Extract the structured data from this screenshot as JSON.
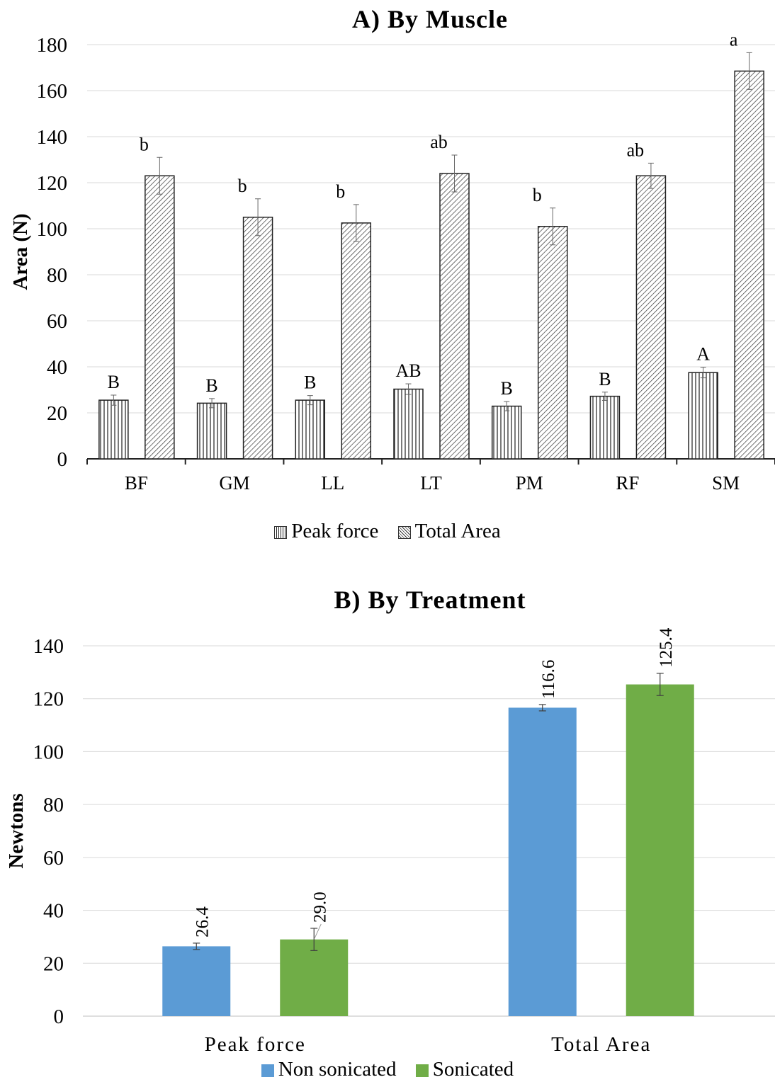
{
  "chart_data": [
    {
      "type": "bar",
      "title": "A) By Muscle",
      "ylabel": "Area (N)",
      "ylim": [
        0,
        180
      ],
      "yticks": [
        0,
        20,
        40,
        60,
        80,
        100,
        120,
        140,
        160,
        180
      ],
      "grid": true,
      "legend_position": "bottom",
      "categories": [
        "BF",
        "GM",
        "LL",
        "LT",
        "PM",
        "RF",
        "SM"
      ],
      "series": [
        {
          "name": "Peak force",
          "pattern": "vertical-lines",
          "values": [
            25.5,
            24.2,
            25.5,
            30.3,
            22.9,
            27.2,
            37.5
          ],
          "errors": [
            2.2,
            2.0,
            2.0,
            2.3,
            2.0,
            1.8,
            2.3
          ],
          "letters": [
            "B",
            "B",
            "B",
            "AB",
            "B",
            "B",
            "A"
          ]
        },
        {
          "name": "Total Area",
          "pattern": "diagonal-lines",
          "values": [
            123,
            105,
            102.5,
            124,
            101,
            123,
            168.5
          ],
          "errors": [
            8,
            8,
            8,
            8,
            8,
            5.5,
            8
          ],
          "letters": [
            "b",
            "b",
            "b",
            "ab",
            "b",
            "ab",
            "a"
          ]
        }
      ]
    },
    {
      "type": "bar",
      "title": "B) By Treatment",
      "ylabel": "Newtons",
      "ylim": [
        0,
        140
      ],
      "yticks": [
        0,
        20,
        40,
        60,
        80,
        100,
        120,
        140
      ],
      "grid": true,
      "legend_position": "bottom",
      "categories": [
        "Peak  force",
        "Total Area"
      ],
      "series": [
        {
          "name": "Non sonicated",
          "color": "#5B9BD5",
          "values": [
            26.4,
            116.6
          ],
          "errors": [
            1.2,
            1.2
          ],
          "labels": [
            "26.4",
            "116.6"
          ]
        },
        {
          "name": "Sonicated",
          "color": "#70AD47",
          "values": [
            29.0,
            125.4
          ],
          "errors": [
            4.2,
            4.2
          ],
          "labels": [
            "29.0",
            "125.4"
          ]
        }
      ]
    }
  ]
}
